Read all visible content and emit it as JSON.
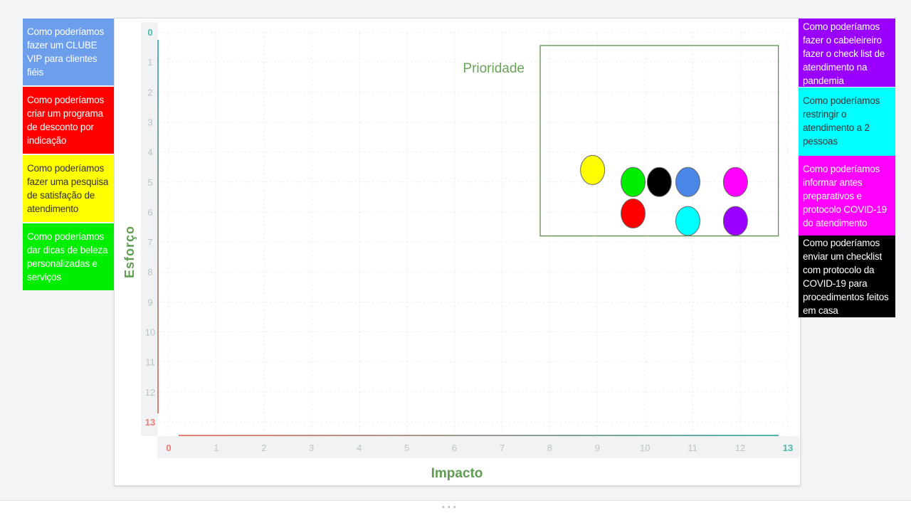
{
  "chart_data": {
    "type": "scatter",
    "xlabel": "Impacto",
    "ylabel": "Esforço",
    "xlim": [
      0,
      13
    ],
    "ylim": [
      0,
      13
    ],
    "x_ticks": [
      "0",
      "1",
      "2",
      "3",
      "4",
      "5",
      "6",
      "7",
      "8",
      "9",
      "10",
      "11",
      "12",
      "13"
    ],
    "y_ticks": [
      "0",
      "1",
      "2",
      "3",
      "4",
      "5",
      "6",
      "7",
      "8",
      "9",
      "10",
      "11",
      "12",
      "13"
    ],
    "y_inverted": true,
    "grid": true,
    "region": {
      "label": "Prioridade",
      "x": [
        7.8,
        12.8
      ],
      "y": [
        0.45,
        6.8
      ]
    },
    "points": [
      {
        "x": 8.9,
        "y": 4.6,
        "color": "#ffff00"
      },
      {
        "x": 9.75,
        "y": 5.0,
        "color": "#00ee00"
      },
      {
        "x": 10.3,
        "y": 5.0,
        "color": "#000000"
      },
      {
        "x": 10.9,
        "y": 5.0,
        "color": "#4a86e8"
      },
      {
        "x": 11.9,
        "y": 5.0,
        "color": "#ff00ff"
      },
      {
        "x": 9.75,
        "y": 6.05,
        "color": "#ff0000"
      },
      {
        "x": 10.9,
        "y": 6.3,
        "color": "#00ffff"
      },
      {
        "x": 11.9,
        "y": 6.3,
        "color": "#9900ff"
      }
    ]
  },
  "notes_left": [
    {
      "text": "Como poderíamos fazer um CLUBE VIP para clientes fiéis",
      "bg": "#6d9eeb",
      "fg": "#ffffff"
    },
    {
      "text": "Como poderíamos criar um programa de desconto por indicação",
      "bg": "#ff0000",
      "fg": "#ffffff"
    },
    {
      "text": "Como poderíamos fazer uma pesquisa de satisfação de atendimento",
      "bg": "#ffff00",
      "fg": "#333333"
    },
    {
      "text": "Como poderíamos dar dicas de beleza personalizadas e serviços",
      "bg": "#00ee00",
      "fg": "#ffffff"
    }
  ],
  "notes_right": [
    {
      "text": "Como poderíamos fazer o cabeleireiro fazer o check list de atendimento na pandemia",
      "bg": "#9900ff",
      "fg": "#ffffff"
    },
    {
      "text": "Como poderíamos restringir o atendimento a 2 pessoas",
      "bg": "#00ffff",
      "fg": "#333333"
    },
    {
      "text": "Como poderíamos informar antes preparativos e protocolo COVID-19 do atendimento",
      "bg": "#ff00ff",
      "fg": "#ffffff"
    },
    {
      "text": "Como poderíamos enviar um checklist com protocolo da COVID-19 para procedimentos feitos em casa",
      "bg": "#000000",
      "fg": "#ffffff"
    }
  ],
  "colors": {
    "axis_start": "#e67c73",
    "axis_end": "#4db6ac",
    "tick": "#b9c4c7",
    "label": "#5e9c4f"
  }
}
